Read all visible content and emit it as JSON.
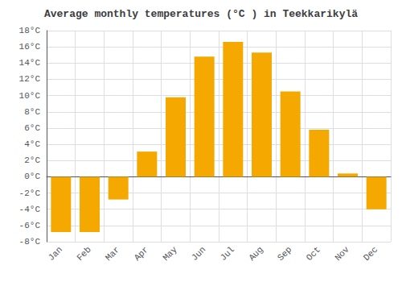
{
  "chart_data": {
    "type": "bar",
    "title": "Average monthly temperatures (°C ) in Teekkarikylä",
    "categories": [
      "Jan",
      "Feb",
      "Mar",
      "Apr",
      "May",
      "Jun",
      "Jul",
      "Aug",
      "Sep",
      "Oct",
      "Nov",
      "Dec"
    ],
    "values": [
      -6.8,
      -6.8,
      -2.8,
      3.1,
      9.8,
      14.8,
      16.6,
      15.3,
      10.5,
      5.8,
      0.4,
      -4.0
    ],
    "color": "#F5A800",
    "ylim": [
      -8,
      18
    ],
    "yticks": [
      {
        "value": -8,
        "label": "-8°C"
      },
      {
        "value": -6,
        "label": "-6°C"
      },
      {
        "value": -4,
        "label": "-4°C"
      },
      {
        "value": -2,
        "label": "-2°C"
      },
      {
        "value": 0,
        "label": "0°C"
      },
      {
        "value": 2,
        "label": "2°C"
      },
      {
        "value": 4,
        "label": "4°C"
      },
      {
        "value": 6,
        "label": "6°C"
      },
      {
        "value": 8,
        "label": "8°C"
      },
      {
        "value": 10,
        "label": "10°C"
      },
      {
        "value": 12,
        "label": "12°C"
      },
      {
        "value": 14,
        "label": "14°C"
      },
      {
        "value": 16,
        "label": "16°C"
      },
      {
        "value": 18,
        "label": "18°C"
      }
    ],
    "grid": true
  }
}
